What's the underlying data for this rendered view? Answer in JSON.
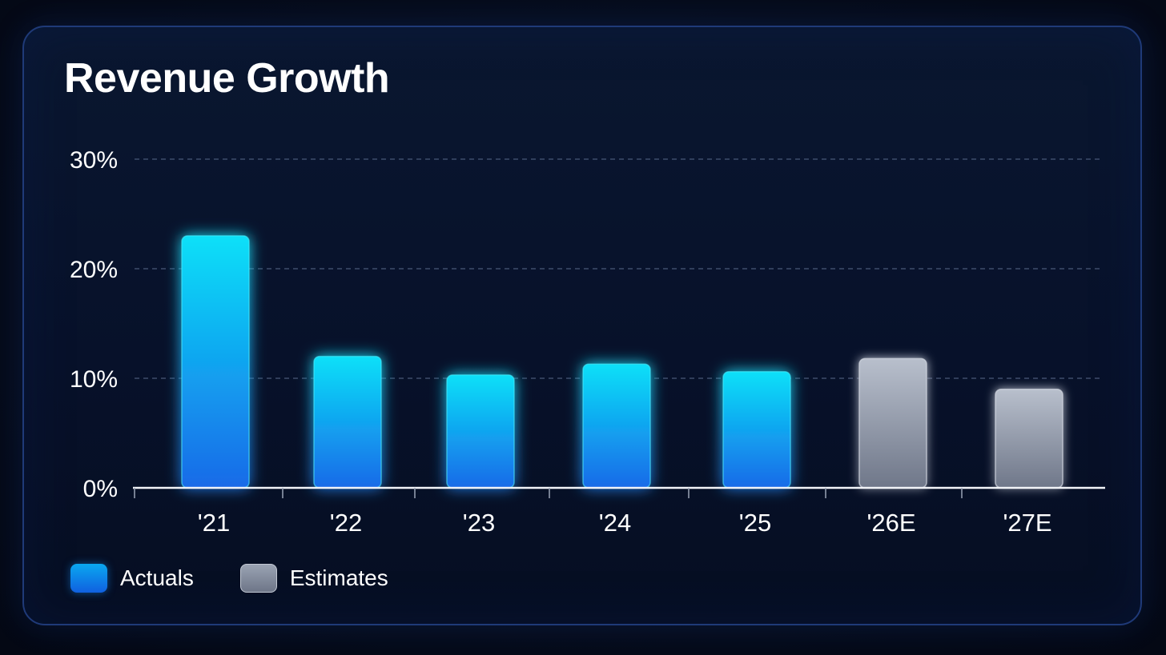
{
  "chart_data": {
    "type": "bar",
    "title": "Revenue Growth",
    "categories": [
      "'21",
      "'22",
      "'23",
      "'24",
      "'25",
      "'26E",
      "'27E"
    ],
    "values": [
      23,
      12,
      10.3,
      11.3,
      10.6,
      11.8,
      9
    ],
    "series_kind": [
      "actual",
      "actual",
      "actual",
      "actual",
      "actual",
      "estimate",
      "estimate"
    ],
    "ylim": [
      0,
      30
    ],
    "yticks": [
      0,
      10,
      20,
      30
    ],
    "ytick_labels": [
      "0%",
      "10%",
      "20%",
      "30%"
    ],
    "grid": true,
    "legend": {
      "placement": "bottom-left",
      "entries": [
        {
          "label": "Actuals",
          "kind": "actual"
        },
        {
          "label": "Estimates",
          "kind": "estimate"
        }
      ]
    },
    "colors": {
      "actual_top": "#08e0f8",
      "actual_bottom": "#1a6ae8",
      "estimate_top": "#b8bfcc",
      "estimate_bottom": "#6f7789"
    }
  }
}
